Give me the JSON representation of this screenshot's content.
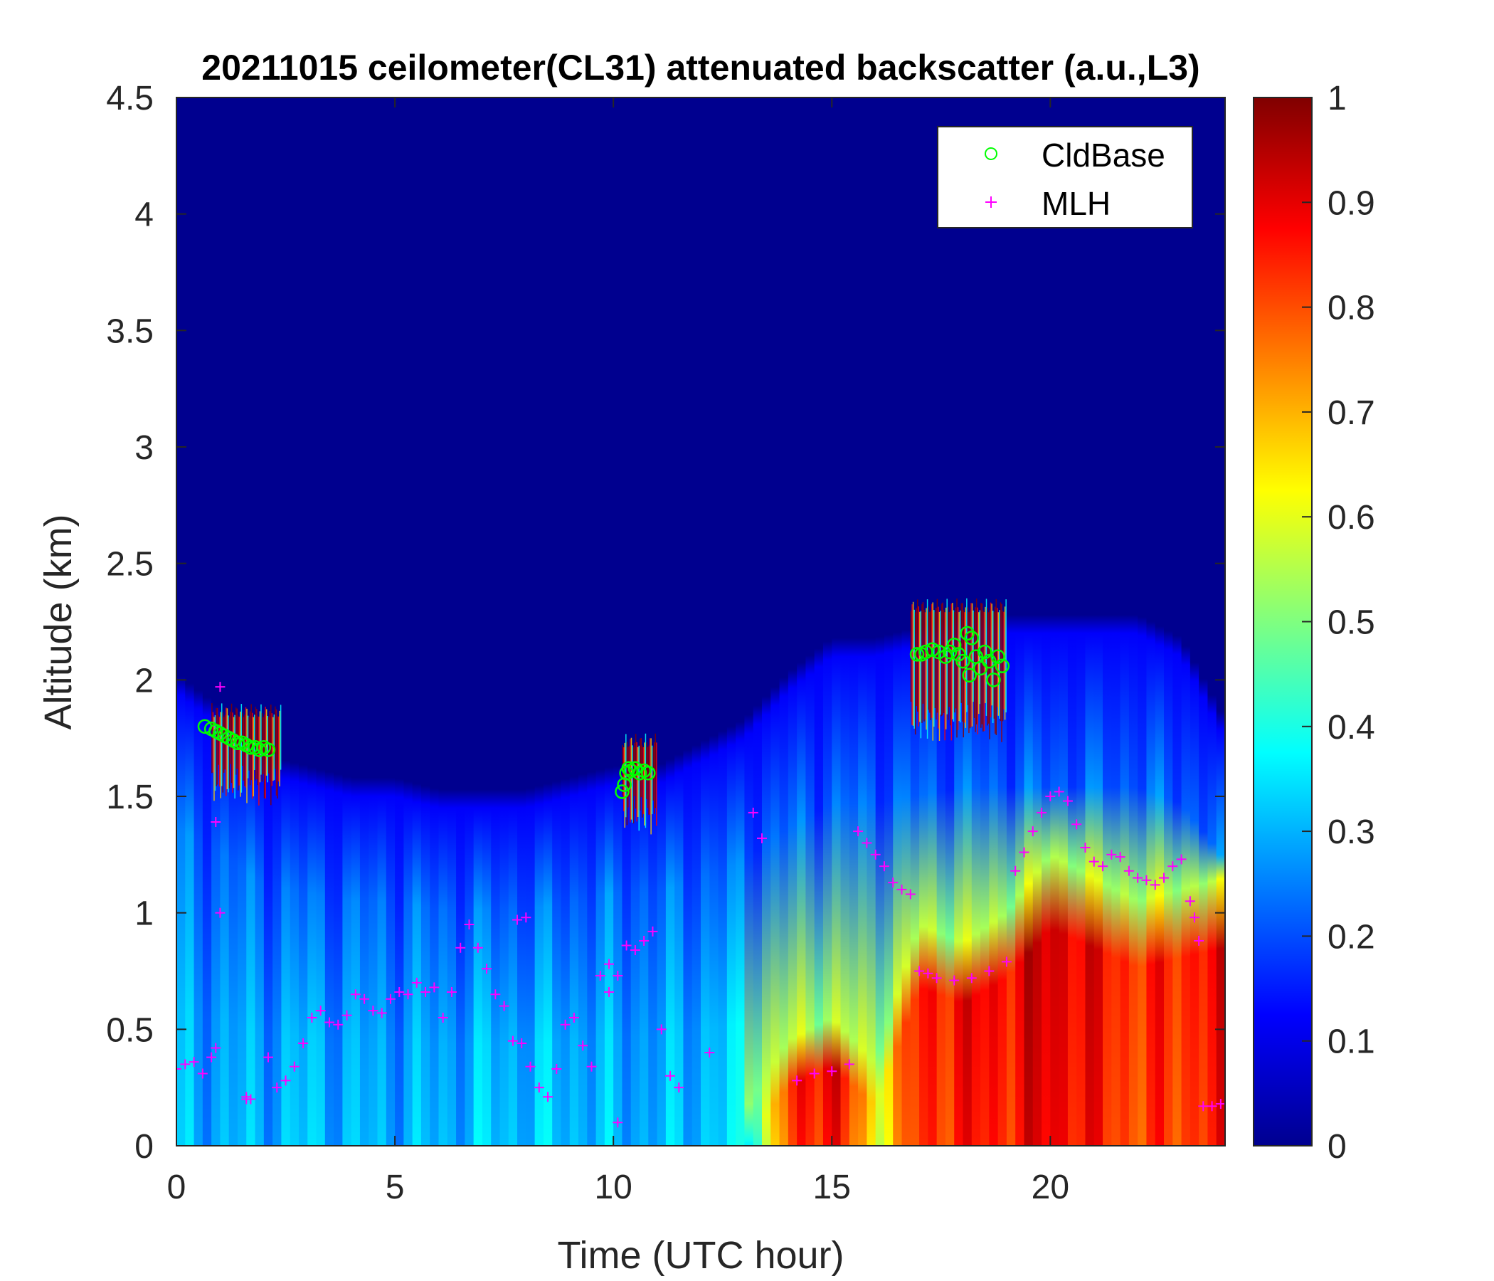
{
  "chart_data": {
    "type": "heatmap",
    "title": "20211015 ceilometer(CL31) attenuated backscatter (a.u.,L3)",
    "xlabel": "Time (UTC hour)",
    "ylabel": "Altitude (km)",
    "xlim": [
      0,
      24
    ],
    "ylim": [
      0,
      4.5
    ],
    "x_ticks": [
      "0",
      "5",
      "10",
      "15",
      "20"
    ],
    "x_tick_values": [
      0,
      5,
      10,
      15,
      20
    ],
    "y_ticks": [
      "0",
      "0.5",
      "1",
      "1.5",
      "2",
      "2.5",
      "3",
      "3.5",
      "4",
      "4.5"
    ],
    "y_tick_values": [
      0,
      0.5,
      1,
      1.5,
      2,
      2.5,
      3,
      3.5,
      4,
      4.5
    ],
    "colorbar": {
      "colormap": "jet",
      "range": [
        0,
        1
      ],
      "ticks": [
        "0",
        "0.1",
        "0.2",
        "0.3",
        "0.4",
        "0.5",
        "0.6",
        "0.7",
        "0.8",
        "0.9",
        "1"
      ],
      "tick_values": [
        0,
        0.1,
        0.2,
        0.3,
        0.4,
        0.5,
        0.6,
        0.7,
        0.8,
        0.9,
        1
      ]
    },
    "legend_position": "top-right",
    "grid": false,
    "aerosol_layer": {
      "times": [
        0,
        1,
        2,
        3,
        4,
        5,
        6,
        7,
        8,
        9,
        10,
        11,
        12,
        13,
        14,
        15,
        16,
        17,
        18,
        19,
        20,
        21,
        22,
        23,
        24
      ],
      "top_km": [
        1.95,
        1.8,
        1.6,
        1.55,
        1.5,
        1.5,
        1.45,
        1.45,
        1.45,
        1.5,
        1.55,
        1.55,
        1.65,
        1.75,
        1.95,
        2.1,
        2.1,
        2.15,
        2.2,
        2.2,
        2.2,
        2.2,
        2.2,
        2.1,
        1.75
      ],
      "surface_value": [
        0.3,
        0.3,
        0.3,
        0.32,
        0.3,
        0.3,
        0.3,
        0.32,
        0.32,
        0.32,
        0.3,
        0.3,
        0.32,
        0.35,
        0.78,
        0.9,
        0.6,
        0.82,
        0.85,
        0.85,
        0.9,
        0.85,
        0.8,
        0.82,
        0.85
      ],
      "hot_top_km": [
        0,
        0,
        0,
        0,
        0,
        0,
        0,
        0,
        0,
        0,
        0,
        0,
        0,
        0,
        0.3,
        0.4,
        0.2,
        0.8,
        0.72,
        0.85,
        1.1,
        1.0,
        0.9,
        0.95,
        1.0
      ]
    },
    "cloud_patches": [
      {
        "t0": 0.8,
        "t1": 2.4,
        "base_km": 1.55,
        "top_km": 1.9
      },
      {
        "t0": 10.2,
        "t1": 11.0,
        "base_km": 1.42,
        "top_km": 1.77
      },
      {
        "t0": 16.8,
        "t1": 19.0,
        "base_km": 1.82,
        "top_km": 2.35
      }
    ],
    "series": [
      {
        "name": "CldBase",
        "marker": "circle",
        "color": "#00ff00",
        "x": [
          0.65,
          0.8,
          0.9,
          1.0,
          1.1,
          1.2,
          1.3,
          1.4,
          1.5,
          1.6,
          1.7,
          1.8,
          1.9,
          2.0,
          2.1,
          10.2,
          10.25,
          10.3,
          10.35,
          10.4,
          10.5,
          10.6,
          10.7,
          10.8,
          16.95,
          17.05,
          17.15,
          17.3,
          17.45,
          17.6,
          17.7,
          17.8,
          17.9,
          18.0,
          18.1,
          18.15,
          18.2,
          18.3,
          18.4,
          18.5,
          18.6,
          18.7,
          18.8,
          18.9
        ],
        "y": [
          1.8,
          1.79,
          1.78,
          1.77,
          1.76,
          1.75,
          1.74,
          1.73,
          1.73,
          1.72,
          1.71,
          1.71,
          1.7,
          1.71,
          1.7,
          1.52,
          1.55,
          1.6,
          1.62,
          1.61,
          1.62,
          1.6,
          1.61,
          1.6,
          2.11,
          2.11,
          2.12,
          2.13,
          2.12,
          2.1,
          2.12,
          2.15,
          2.11,
          2.08,
          2.2,
          2.02,
          2.18,
          2.1,
          2.05,
          2.12,
          2.08,
          2.0,
          2.1,
          2.06
        ]
      },
      {
        "name": "MLH",
        "marker": "plus",
        "color": "#ff00ff",
        "x": [
          0.0,
          0.2,
          0.4,
          0.6,
          0.8,
          0.9,
          1.0,
          1.6,
          1.7,
          2.1,
          2.3,
          2.5,
          2.7,
          2.9,
          3.1,
          3.3,
          3.5,
          3.7,
          3.9,
          4.1,
          4.3,
          4.5,
          4.7,
          4.9,
          5.1,
          5.3,
          5.5,
          5.7,
          5.9,
          6.1,
          6.3,
          6.5,
          6.7,
          6.9,
          7.1,
          7.3,
          7.5,
          7.7,
          7.9,
          8.1,
          8.3,
          8.5,
          8.7,
          8.9,
          9.1,
          9.3,
          9.5,
          9.7,
          9.9,
          10.1,
          10.3,
          10.5,
          10.7,
          10.9,
          11.1,
          11.3,
          11.5,
          12.2,
          13.2,
          13.4,
          14.2,
          14.6,
          15.0,
          15.4,
          15.6,
          15.8,
          16.0,
          16.2,
          16.4,
          16.6,
          16.8,
          17.0,
          17.2,
          17.4,
          17.8,
          18.2,
          18.6,
          19.0,
          19.2,
          19.4,
          19.6,
          19.8,
          20.0,
          20.2,
          20.4,
          20.6,
          20.8,
          21.0,
          21.2,
          21.4,
          21.6,
          21.8,
          22.0,
          22.2,
          22.4,
          22.6,
          22.8,
          23.0,
          23.2,
          23.3,
          23.5,
          23.7,
          23.9,
          0.9,
          1.0,
          1.6,
          7.8,
          8.0,
          9.9,
          10.1,
          23.4
        ],
        "y": [
          0.33,
          0.35,
          0.36,
          0.31,
          0.38,
          0.42,
          1.97,
          0.21,
          0.2,
          0.38,
          0.25,
          0.28,
          0.34,
          0.44,
          0.55,
          0.58,
          0.53,
          0.52,
          0.56,
          0.65,
          0.63,
          0.58,
          0.57,
          0.63,
          0.66,
          0.65,
          0.7,
          0.66,
          0.68,
          0.55,
          0.66,
          0.85,
          0.95,
          0.85,
          0.76,
          0.65,
          0.6,
          0.45,
          0.44,
          0.34,
          0.25,
          0.21,
          0.33,
          0.52,
          0.55,
          0.43,
          0.34,
          0.73,
          0.66,
          0.73,
          0.86,
          0.84,
          0.88,
          0.92,
          0.5,
          0.3,
          0.25,
          0.4,
          1.43,
          1.32,
          0.28,
          0.31,
          0.32,
          0.35,
          1.35,
          1.3,
          1.25,
          1.2,
          1.13,
          1.1,
          1.08,
          0.75,
          0.74,
          0.72,
          0.71,
          0.72,
          0.75,
          0.79,
          1.18,
          1.26,
          1.35,
          1.43,
          1.5,
          1.52,
          1.48,
          1.38,
          1.28,
          1.22,
          1.2,
          1.25,
          1.24,
          1.18,
          1.15,
          1.14,
          1.12,
          1.15,
          1.2,
          1.23,
          1.05,
          0.98,
          0.17,
          0.17,
          0.18,
          1.39,
          1.0,
          0.2,
          0.97,
          0.98,
          0.78,
          0.1,
          0.88
        ]
      }
    ]
  },
  "legend": {
    "items": [
      {
        "label": "CldBase",
        "color": "#00ff00"
      },
      {
        "label": "MLH",
        "color": "#ff00ff"
      }
    ]
  }
}
